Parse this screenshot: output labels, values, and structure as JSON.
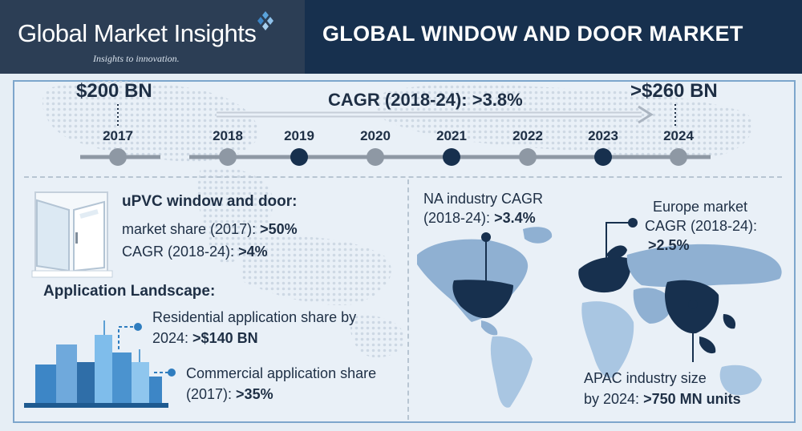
{
  "header": {
    "brand": "Global Market Insights",
    "tagline": "Insights to innovation.",
    "title": "GLOBAL WINDOW AND DOOR MARKET"
  },
  "timeline": {
    "start_value": "$200 BN",
    "end_value": ">$260 BN",
    "cagr": "CAGR (2018-24): >3.8%",
    "years": [
      "2017",
      "2018",
      "2019",
      "2020",
      "2021",
      "2022",
      "2023",
      "2024"
    ]
  },
  "upvc": {
    "heading": "uPVC window and door:",
    "share_label": "market share (2017): ",
    "share_value": ">50%",
    "cagr_label": "CAGR (2018-24): ",
    "cagr_value": ">4%"
  },
  "application": {
    "heading": "Application Landscape:",
    "residential_line1": "Residential application share by",
    "residential_line2": "2024: ",
    "residential_value": ">$140 BN",
    "commercial_line1": "Commercial application share",
    "commercial_line2": "(2017): ",
    "commercial_value": ">35%"
  },
  "regions": {
    "na_line1": "NA industry CAGR",
    "na_line2": "(2018-24): ",
    "na_value": ">3.4%",
    "eu_line1": "Europe market",
    "eu_line2": "CAGR (2018-24):",
    "eu_value": ">2.5%",
    "apac_line1": "APAC industry size",
    "apac_line2": "by 2024: ",
    "apac_value": ">750 MN units"
  },
  "colors": {
    "header_left": "#2c3e55",
    "header_right": "#17304e",
    "dark_node": "#17304e",
    "light_node": "#8e98a4",
    "accent": "#2f7dbf"
  }
}
